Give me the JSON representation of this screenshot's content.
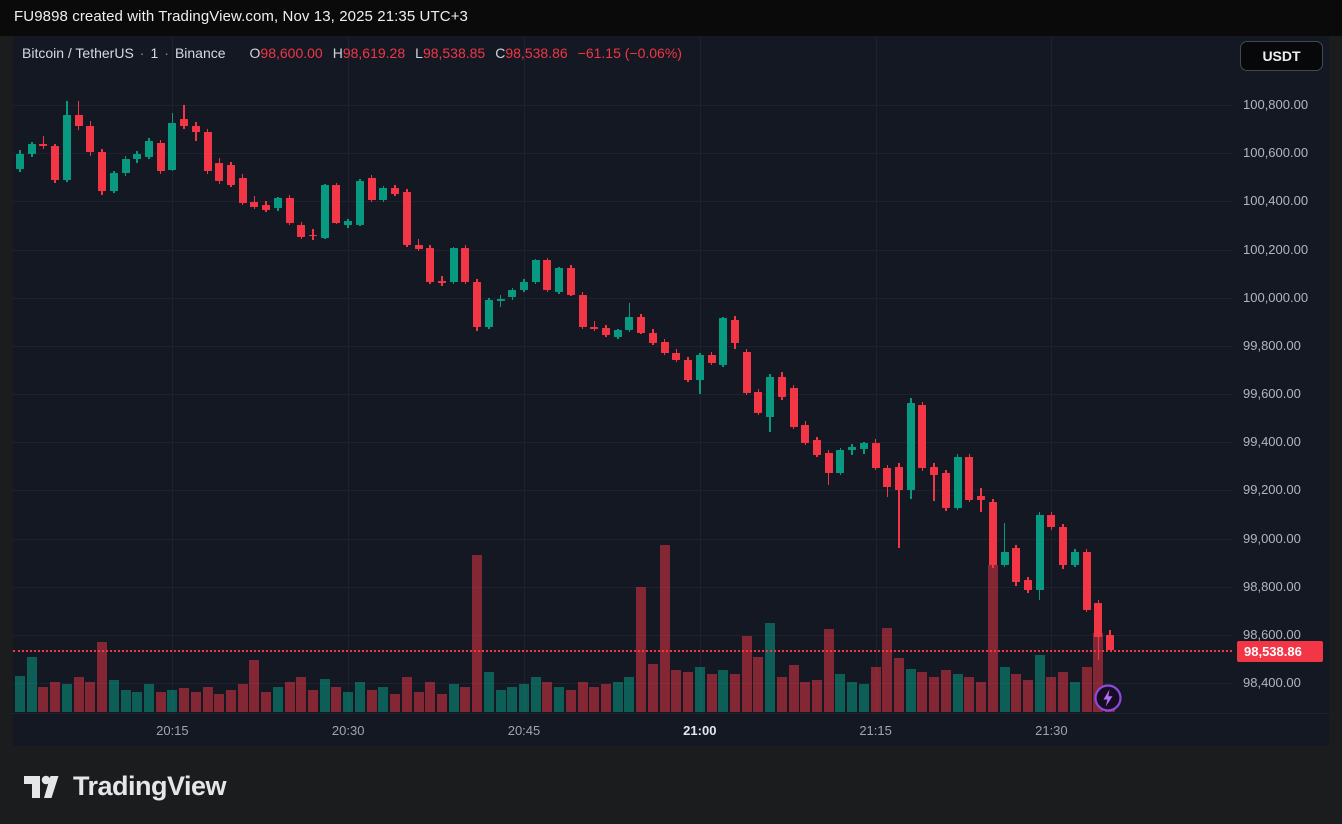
{
  "attribution": "FU9898 created with TradingView.com, Nov 13, 2025 21:35 UTC+3",
  "header": {
    "symbol": "Bitcoin / TetherUS",
    "sep": "·",
    "interval": "1",
    "exchange": "Binance",
    "ohlc": [
      {
        "k": "O",
        "v": "98,600.00"
      },
      {
        "k": "H",
        "v": "98,619.28"
      },
      {
        "k": "L",
        "v": "98,538.85"
      },
      {
        "k": "C",
        "v": "98,538.86"
      }
    ],
    "change": "−61.15 (−0.06%)"
  },
  "currency_button": "USDT",
  "logo_text": "TradingView",
  "colors": {
    "up": "#089981",
    "down": "#f23645",
    "background": "#141823",
    "grid": "#1e2230",
    "axis_text": "#b2b5be",
    "price_label_bg": "#f23645",
    "flash_purple": "#8d4bdb"
  },
  "chart_data": {
    "type": "candlestick+volume",
    "title": "Bitcoin / TetherUS · 1 · Binance",
    "interval": "1 minute",
    "legend_position": "top-left",
    "grid": true,
    "ylim": [
      98280,
      101086
    ],
    "price_ticks": [
      {
        "label": "100,800.00",
        "price": 100800
      },
      {
        "label": "100,600.00",
        "price": 100600
      },
      {
        "label": "100,400.00",
        "price": 100400
      },
      {
        "label": "100,200.00",
        "price": 100200
      },
      {
        "label": "100,000.00",
        "price": 100000
      },
      {
        "label": "99,800.00",
        "price": 99800
      },
      {
        "label": "99,600.00",
        "price": 99600
      },
      {
        "label": "99,400.00",
        "price": 99400
      },
      {
        "label": "99,200.00",
        "price": 99200
      },
      {
        "label": "99,000.00",
        "price": 99000
      },
      {
        "label": "98,800.00",
        "price": 98800
      },
      {
        "label": "98,600.00",
        "price": 98600
      },
      {
        "label": "98,400.00",
        "price": 98400
      }
    ],
    "time_ticks": [
      {
        "label": "20:15",
        "strong": false
      },
      {
        "label": "20:30",
        "strong": false
      },
      {
        "label": "20:45",
        "strong": false
      },
      {
        "label": "21:00",
        "strong": true
      },
      {
        "label": "21:15",
        "strong": false
      },
      {
        "label": "21:30",
        "strong": false
      }
    ],
    "current_price": {
      "label": "98,538.86",
      "price": 98538.86
    },
    "candles_format": [
      "time",
      "open",
      "high",
      "low",
      "close",
      "volume_rel_px"
    ],
    "candles": [
      [
        "20:02",
        100535,
        100612,
        100520,
        100598,
        36
      ],
      [
        "20:03",
        100598,
        100648,
        100585,
        100640,
        55
      ],
      [
        "20:04",
        100640,
        100672,
        100618,
        100628,
        25
      ],
      [
        "20:05",
        100628,
        100640,
        100475,
        100488,
        30
      ],
      [
        "20:06",
        100488,
        100815,
        100480,
        100758,
        28
      ],
      [
        "20:07",
        100758,
        100818,
        100698,
        100712,
        35
      ],
      [
        "20:08",
        100712,
        100735,
        100590,
        100604,
        30
      ],
      [
        "20:09",
        100604,
        100618,
        100428,
        100441,
        70
      ],
      [
        "20:10",
        100441,
        100528,
        100433,
        100516,
        32
      ],
      [
        "20:11",
        100516,
        100588,
        100505,
        100575,
        22
      ],
      [
        "20:12",
        100575,
        100608,
        100558,
        100596,
        20
      ],
      [
        "20:13",
        100585,
        100662,
        100576,
        100652,
        28
      ],
      [
        "20:14",
        100642,
        100655,
        100512,
        100524,
        20
      ],
      [
        "20:15",
        100532,
        100766,
        100524,
        100725,
        22
      ],
      [
        "20:16",
        100740,
        100802,
        100702,
        100714,
        24
      ],
      [
        "20:17",
        100714,
        100728,
        100652,
        100688,
        20
      ],
      [
        "20:18",
        100688,
        100702,
        100515,
        100526,
        25
      ],
      [
        "20:19",
        100558,
        100582,
        100472,
        100486,
        18
      ],
      [
        "20:20",
        100551,
        100565,
        100458,
        100468,
        22
      ],
      [
        "20:21",
        100497,
        100512,
        100385,
        100394,
        28
      ],
      [
        "20:22",
        100397,
        100422,
        100368,
        100378,
        52
      ],
      [
        "20:23",
        100385,
        100402,
        100355,
        100365,
        20
      ],
      [
        "20:24",
        100372,
        100420,
        100362,
        100413,
        25
      ],
      [
        "20:25",
        100413,
        100425,
        100302,
        100311,
        30
      ],
      [
        "20:26",
        100303,
        100315,
        100245,
        100253,
        35
      ],
      [
        "20:27",
        100262,
        100285,
        100240,
        100256,
        22
      ],
      [
        "20:28",
        100249,
        100472,
        100242,
        100467,
        33
      ],
      [
        "20:29",
        100467,
        100478,
        100305,
        100312,
        25
      ],
      [
        "20:30",
        100303,
        100325,
        100288,
        100318,
        20
      ],
      [
        "20:31",
        100303,
        100492,
        100296,
        100486,
        30
      ],
      [
        "20:32",
        100497,
        100510,
        100398,
        100407,
        22
      ],
      [
        "20:33",
        100407,
        100462,
        100398,
        100455,
        25
      ],
      [
        "20:34",
        100455,
        100468,
        100422,
        100432,
        18
      ],
      [
        "20:35",
        100440,
        100452,
        100212,
        100220,
        35
      ],
      [
        "20:36",
        100220,
        100242,
        100192,
        100203,
        20
      ],
      [
        "20:37",
        100206,
        100218,
        100058,
        100066,
        30
      ],
      [
        "20:38",
        100070,
        100092,
        100048,
        100059,
        18
      ],
      [
        "20:39",
        100066,
        100212,
        100058,
        100205,
        28
      ],
      [
        "20:40",
        100205,
        100218,
        100055,
        100064,
        25
      ],
      [
        "20:41",
        100066,
        100078,
        99862,
        99878,
        157
      ],
      [
        "20:42",
        99878,
        99998,
        99870,
        99989,
        40
      ],
      [
        "20:43",
        99985,
        100012,
        99962,
        99994,
        22
      ],
      [
        "20:44",
        100002,
        100042,
        99992,
        100031,
        25
      ],
      [
        "20:45",
        100031,
        100078,
        100022,
        100066,
        28
      ],
      [
        "20:46",
        100066,
        100162,
        100058,
        100155,
        35
      ],
      [
        "20:47",
        100155,
        100165,
        100025,
        100033,
        30
      ],
      [
        "20:48",
        100023,
        100128,
        100015,
        100122,
        25
      ],
      [
        "20:49",
        100122,
        100135,
        100005,
        100012,
        22
      ],
      [
        "20:50",
        100012,
        100025,
        99872,
        99878,
        30
      ],
      [
        "20:51",
        99878,
        99902,
        99862,
        99874,
        25
      ],
      [
        "20:52",
        99874,
        99888,
        99838,
        99845,
        28
      ],
      [
        "20:53",
        99838,
        99872,
        99828,
        99866,
        30
      ],
      [
        "20:54",
        99866,
        99978,
        99858,
        99919,
        35
      ],
      [
        "20:55",
        99919,
        99932,
        99848,
        99855,
        125
      ],
      [
        "20:56",
        99855,
        99868,
        99805,
        99812,
        48
      ],
      [
        "20:57",
        99815,
        99828,
        99762,
        99771,
        167
      ],
      [
        "20:58",
        99771,
        99785,
        99732,
        99740,
        42
      ],
      [
        "20:59",
        99740,
        99752,
        99648,
        99658,
        40
      ],
      [
        "21:00",
        99658,
        99772,
        99602,
        99762,
        45
      ],
      [
        "21:01",
        99762,
        99775,
        99722,
        99730,
        38
      ],
      [
        "21:02",
        99720,
        99920,
        99712,
        99915,
        42
      ],
      [
        "21:03",
        99908,
        99922,
        99788,
        99812,
        38
      ],
      [
        "21:04",
        99775,
        99788,
        99598,
        99605,
        76
      ],
      [
        "21:05",
        99608,
        99622,
        99512,
        99522,
        55
      ],
      [
        "21:06",
        99505,
        99682,
        99442,
        99670,
        89
      ],
      [
        "21:07",
        99670,
        99692,
        99575,
        99588,
        35
      ],
      [
        "21:08",
        99625,
        99638,
        99455,
        99464,
        47
      ],
      [
        "21:09",
        99471,
        99488,
        99388,
        99396,
        30
      ],
      [
        "21:10",
        99409,
        99422,
        99338,
        99348,
        32
      ],
      [
        "21:11",
        99355,
        99368,
        99222,
        99272,
        83
      ],
      [
        "21:12",
        99272,
        99375,
        99262,
        99367,
        38
      ],
      [
        "21:13",
        99367,
        99392,
        99348,
        99380,
        30
      ],
      [
        "21:14",
        99372,
        99402,
        99352,
        99395,
        28
      ],
      [
        "21:15",
        99395,
        99412,
        99285,
        99295,
        45
      ],
      [
        "21:16",
        99293,
        99305,
        99172,
        99214,
        84
      ],
      [
        "21:17",
        99297,
        99312,
        98962,
        99202,
        54
      ],
      [
        "21:18",
        99202,
        99585,
        99165,
        99563,
        43
      ],
      [
        "21:19",
        99554,
        99568,
        99282,
        99293,
        40
      ],
      [
        "21:20",
        99297,
        99312,
        99158,
        99264,
        35
      ],
      [
        "21:21",
        99272,
        99285,
        99115,
        99127,
        42
      ],
      [
        "21:22",
        99127,
        99352,
        99118,
        99339,
        38
      ],
      [
        "21:23",
        99339,
        99352,
        99152,
        99160,
        35
      ],
      [
        "21:24",
        99176,
        99212,
        99112,
        99160,
        30
      ],
      [
        "21:25",
        99152,
        99165,
        98878,
        98890,
        147
      ],
      [
        "21:26",
        98890,
        99064,
        98882,
        98944,
        45
      ],
      [
        "21:27",
        98960,
        98975,
        98805,
        98819,
        38
      ],
      [
        "21:28",
        98828,
        98842,
        98772,
        98786,
        32
      ],
      [
        "21:29",
        98786,
        99112,
        98745,
        99098,
        57
      ],
      [
        "21:30",
        99098,
        99112,
        99035,
        99048,
        35
      ],
      [
        "21:31",
        99048,
        99062,
        98872,
        98890,
        40
      ],
      [
        "21:32",
        98890,
        98958,
        98882,
        98944,
        30
      ],
      [
        "21:33",
        98944,
        98958,
        98695,
        98703,
        45
      ],
      [
        "21:34",
        98732,
        98745,
        98496,
        98591,
        79
      ],
      [
        "21:35",
        98600,
        98619.28,
        98538.85,
        98538.86,
        22
      ]
    ]
  }
}
